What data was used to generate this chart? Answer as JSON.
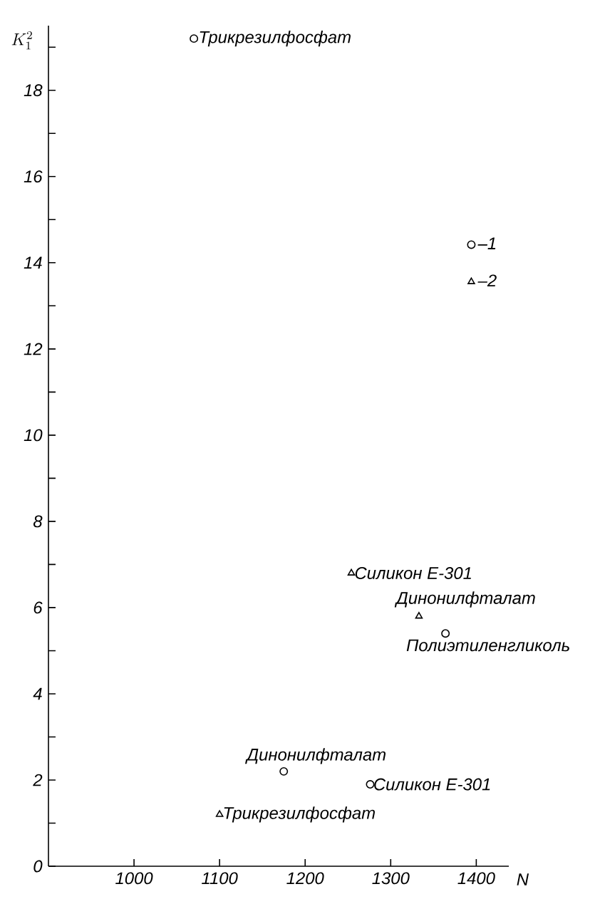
{
  "chart_data": {
    "type": "scatter",
    "xlabel": "N",
    "ylabel": "K_1^2",
    "xlim": [
      900,
      1438
    ],
    "xticks": [
      1000,
      1100,
      1200,
      1300,
      1400
    ],
    "ylim": [
      0,
      19.5
    ],
    "yticks": [
      0,
      {
        "value": 1,
        "label": null
      },
      2,
      {
        "value": 3,
        "label": null
      },
      4,
      {
        "value": 5,
        "label": null
      },
      6,
      {
        "value": 7,
        "label": null
      },
      8,
      {
        "value": 9,
        "label": null
      },
      10,
      {
        "value": 11,
        "label": null
      },
      12,
      {
        "value": 13,
        "label": null
      },
      14,
      {
        "value": 15,
        "label": null
      },
      16,
      {
        "value": 17,
        "label": null
      },
      18,
      {
        "value": 19,
        "label": null
      }
    ],
    "legend": "right",
    "grid": false,
    "series": [
      {
        "name": "–1",
        "color": "#000000",
        "marker": "circle",
        "x": [
          1070,
          1175,
          1276,
          1364
        ],
        "values": [
          19.2,
          2.2,
          1.9,
          5.4
        ]
      },
      {
        "name": "–2",
        "color": "#000000",
        "marker": "triangle",
        "x": [
          1100,
          1254,
          1333
        ],
        "values": [
          1.2,
          6.8,
          5.8
        ]
      }
    ],
    "annotations": [
      {
        "text": "Трикрезилфосфат",
        "x": 1070,
        "y": 19.2
      },
      {
        "text": "Силикон Е-301",
        "x": 1254,
        "y": 6.8
      },
      {
        "text": "Динонилфталат",
        "x": 1333,
        "y": 5.8
      },
      {
        "text": "Полиэтиленгликоль",
        "x": 1364,
        "y": 5.4
      },
      {
        "text": "Динонилфталат",
        "x": 1175,
        "y": 2.2
      },
      {
        "text": "Силикон Е-301",
        "x": 1276,
        "y": 1.9
      },
      {
        "text": "Трикрезилфосфат",
        "x": 1100,
        "y": 1.2
      }
    ]
  }
}
